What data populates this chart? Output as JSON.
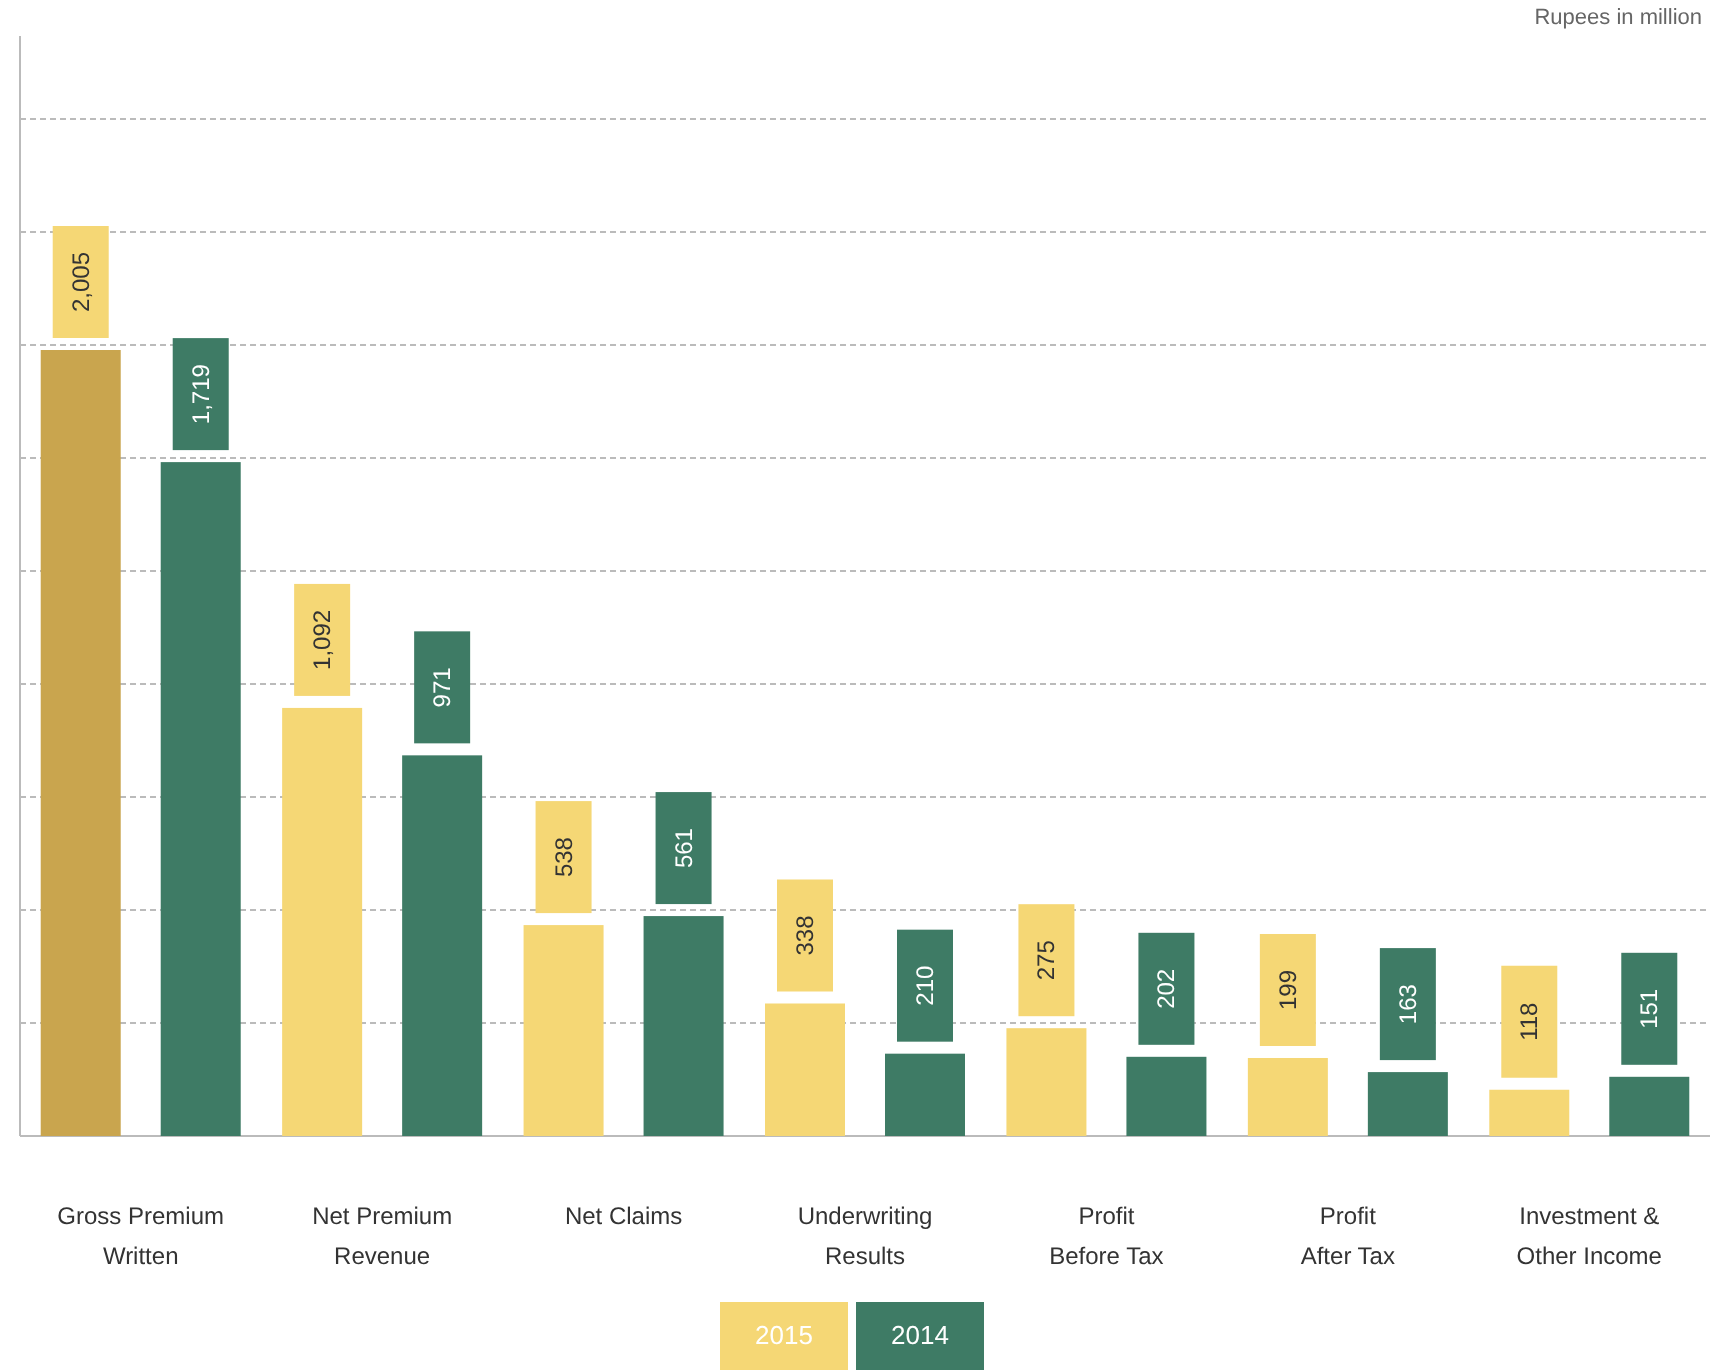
{
  "chart_data": {
    "type": "bar",
    "categories": [
      "Gross Premium Written",
      "Net Premium Revenue",
      "Net Claims",
      "Underwriting Results",
      "Profit Before Tax",
      "Profit After Tax",
      "Investment & Other Income"
    ],
    "series": [
      {
        "name": "2015",
        "color": "#f5d775",
        "colors": [
          "#c9a54e",
          "#f5d775",
          "#f5d775",
          "#f5d775",
          "#f5d775",
          "#f5d775",
          "#f5d775"
        ],
        "values": [
          2005,
          1092,
          538,
          338,
          275,
          199,
          118
        ],
        "value_labels": [
          "2,005",
          "1,092",
          "538",
          "338",
          "275",
          "199",
          "118"
        ]
      },
      {
        "name": "2014",
        "color": "#3e7b65",
        "values": [
          1719,
          971,
          561,
          210,
          202,
          163,
          151
        ],
        "value_labels": [
          "1,719",
          "971",
          "561",
          "210",
          "202",
          "163",
          "151"
        ]
      }
    ],
    "grid": "y",
    "tick_labels": "x",
    "legend": "bottom",
    "annotations": [
      "Rupees in million"
    ]
  }
}
